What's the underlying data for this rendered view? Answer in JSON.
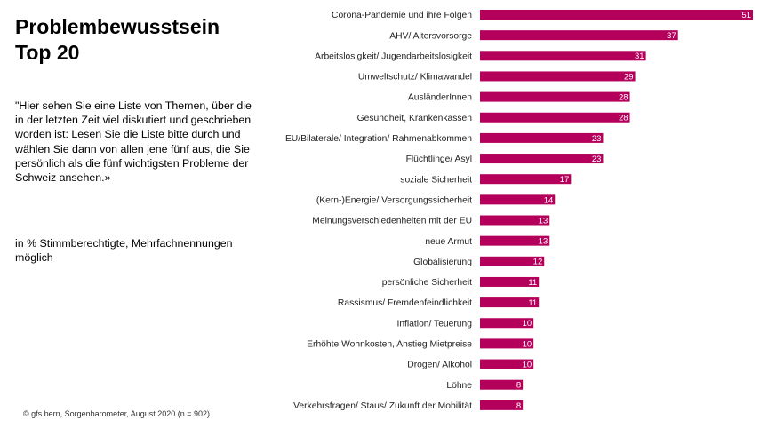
{
  "header": {
    "title_line1": "Problembewusstsein",
    "title_line2": "Top 20"
  },
  "question": "\"Hier sehen Sie eine Liste von Themen, über die in der letzten Zeit viel diskutiert und geschrieben worden ist: Lesen Sie die Liste bitte durch und wählen Sie dann von allen jene fünf aus, die Sie persönlich als die fünf wichtigsten Probleme der Schweiz ansehen.»",
  "unit_note": "in % Stimmberechtigte, Mehrfachnennungen möglich",
  "source": "© gfs.bern, Sorgenbarometer, August 2020 (n = 902)",
  "chart_data": {
    "type": "bar",
    "orientation": "horizontal",
    "bar_color": "#b5005b",
    "categories": [
      "Corona-Pandemie und ihre Folgen",
      "AHV/ Altersvorsorge",
      "Arbeitslosigkeit/ Jugendarbeitslosigkeit",
      "Umweltschutz/ Klimawandel",
      "AusländerInnen",
      "Gesundheit, Krankenkassen",
      "EU/Bilaterale/ Integration/ Rahmenabkommen",
      "Flüchtlinge/ Asyl",
      "soziale Sicherheit",
      "(Kern-)Energie/ Versorgungssicherheit",
      "Meinungsverschiedenheiten mit der EU",
      "neue Armut",
      "Globalisierung",
      "persönliche Sicherheit",
      "Rassismus/ Fremdenfeindlichkeit",
      "Inflation/ Teuerung",
      "Erhöhte Wohnkosten, Anstieg Mietpreise",
      "Drogen/ Alkohol",
      "Löhne",
      "Verkehrsfragen/ Staus/ Zukunft der Mobilität"
    ],
    "values": [
      51,
      37,
      31,
      29,
      28,
      28,
      23,
      23,
      17,
      14,
      13,
      13,
      12,
      11,
      11,
      10,
      10,
      10,
      8,
      8
    ],
    "xlim": [
      0,
      51
    ]
  }
}
